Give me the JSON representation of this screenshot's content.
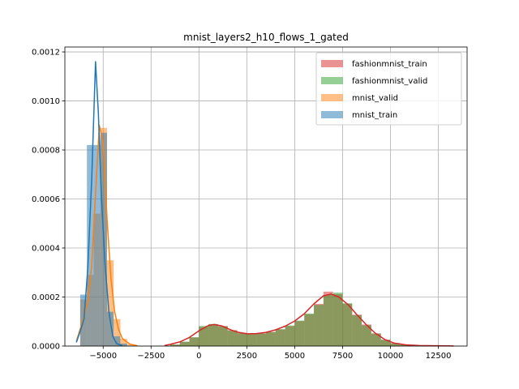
{
  "chart_data": {
    "type": "histogram",
    "title": "mnist_layers2_h10_flows_1_gated",
    "xlabel": "",
    "ylabel": "",
    "xlim": [
      -7000,
      14000
    ],
    "ylim": [
      0,
      0.00122
    ],
    "xticks": [
      -5000,
      -2500,
      0,
      2500,
      5000,
      7500,
      10000,
      12500
    ],
    "xtick_labels": [
      "−5000",
      "−2500",
      "0",
      "2500",
      "5000",
      "7500",
      "10000",
      "12500"
    ],
    "yticks": [
      0,
      0.0002,
      0.0004,
      0.0006,
      0.0008,
      0.001,
      0.0012
    ],
    "ytick_labels": [
      "0.0000",
      "0.0002",
      "0.0004",
      "0.0006",
      "0.0008",
      "0.0010",
      "0.0012"
    ],
    "grid": true,
    "legend_position": "top-right",
    "series": [
      {
        "name": "fashionmnist_train",
        "color": "#d62728",
        "bins": [
          [
            -1500,
            -1000,
            6e-06
          ],
          [
            -1000,
            -500,
            1.7e-05
          ],
          [
            -500,
            0,
            3.5e-05
          ],
          [
            0,
            500,
            7.8e-05
          ],
          [
            500,
            1000,
            8.8e-05
          ],
          [
            1000,
            1500,
            8.2e-05
          ],
          [
            1500,
            2000,
            6.5e-05
          ],
          [
            2000,
            2500,
            5.4e-05
          ],
          [
            2500,
            3000,
            5e-05
          ],
          [
            3000,
            3500,
            5.2e-05
          ],
          [
            3500,
            4000,
            5.8e-05
          ],
          [
            4000,
            4500,
            6.8e-05
          ],
          [
            4500,
            5000,
            8.2e-05
          ],
          [
            5000,
            5500,
            0.000102
          ],
          [
            5500,
            6000,
            0.00013
          ],
          [
            6000,
            6500,
            0.000172
          ],
          [
            6500,
            7000,
            0.000222
          ],
          [
            7000,
            7500,
            0.000212
          ],
          [
            7500,
            8000,
            0.000172
          ],
          [
            8000,
            8500,
            0.000128
          ],
          [
            8500,
            9000,
            8.8e-05
          ],
          [
            9000,
            9500,
            5.2e-05
          ],
          [
            9500,
            10000,
            2.6e-05
          ],
          [
            10000,
            10500,
            1.2e-05
          ],
          [
            10500,
            11000,
            5e-06
          ],
          [
            11000,
            11500,
            2e-06
          ]
        ],
        "kde": [
          [
            -1800,
            2e-06
          ],
          [
            -1500,
            7e-06
          ],
          [
            -1000,
            1.7e-05
          ],
          [
            -500,
            3.5e-05
          ],
          [
            0,
            6.2e-05
          ],
          [
            500,
            8.4e-05
          ],
          [
            800,
            8.8e-05
          ],
          [
            1200,
            8.2e-05
          ],
          [
            1600,
            6.8e-05
          ],
          [
            2000,
            5.7e-05
          ],
          [
            2500,
            5e-05
          ],
          [
            3000,
            5.1e-05
          ],
          [
            3500,
            5.6e-05
          ],
          [
            4000,
            6.6e-05
          ],
          [
            4500,
            8.1e-05
          ],
          [
            5000,
            0.000102
          ],
          [
            5500,
            0.000132
          ],
          [
            6000,
            0.000172
          ],
          [
            6500,
            0.000205
          ],
          [
            6900,
            0.000212
          ],
          [
            7300,
            0.0002
          ],
          [
            7800,
            0.000168
          ],
          [
            8200,
            0.000132
          ],
          [
            8700,
            9e-05
          ],
          [
            9200,
            5.3e-05
          ],
          [
            9700,
            2.7e-05
          ],
          [
            10200,
            1.2e-05
          ],
          [
            10800,
            5e-06
          ],
          [
            11500,
            2e-06
          ],
          [
            13300,
            2e-07
          ]
        ]
      },
      {
        "name": "fashionmnist_valid",
        "color": "#2ca02c",
        "bins": [
          [
            -1500,
            -1000,
            6e-06
          ],
          [
            -1000,
            -500,
            1.8e-05
          ],
          [
            -500,
            0,
            3.6e-05
          ],
          [
            0,
            500,
            8.2e-05
          ],
          [
            500,
            1000,
            9e-05
          ],
          [
            1000,
            1500,
            8e-05
          ],
          [
            1500,
            2000,
            6.3e-05
          ],
          [
            2000,
            2500,
            5.2e-05
          ],
          [
            2500,
            3000,
            4.9e-05
          ],
          [
            3000,
            3500,
            5.1e-05
          ],
          [
            3500,
            4000,
            5.7e-05
          ],
          [
            4000,
            4500,
            6.9e-05
          ],
          [
            4500,
            5000,
            8.4e-05
          ],
          [
            5000,
            5500,
            0.000104
          ],
          [
            5500,
            6000,
            0.000133
          ],
          [
            6000,
            6500,
            0.000168
          ],
          [
            6500,
            7000,
            0.000208
          ],
          [
            7000,
            7500,
            0.000218
          ],
          [
            7500,
            8000,
            0.000175
          ],
          [
            8000,
            8500,
            0.000126
          ],
          [
            8500,
            9000,
            8.5e-05
          ],
          [
            9000,
            9500,
            5e-05
          ],
          [
            9500,
            10000,
            2.5e-05
          ],
          [
            10000,
            10500,
            1.1e-05
          ],
          [
            10500,
            11000,
            5e-06
          ],
          [
            11000,
            11500,
            2e-06
          ]
        ]
      },
      {
        "name": "mnist_valid",
        "color": "#ff7f0e",
        "bins": [
          [
            -6200,
            -5850,
            0.00019
          ],
          [
            -5850,
            -5500,
            0.00029
          ],
          [
            -5500,
            -5150,
            0.00054
          ],
          [
            -5150,
            -4800,
            0.00089
          ],
          [
            -4800,
            -4450,
            0.00035
          ],
          [
            -4450,
            -4100,
            0.00011
          ],
          [
            -4100,
            -3750,
            3e-05
          ],
          [
            -3750,
            -3400,
            8e-06
          ]
        ],
        "kde": [
          [
            -6400,
            2e-05
          ],
          [
            -6200,
            7e-05
          ],
          [
            -6000,
            0.00012
          ],
          [
            -5800,
            0.00018
          ],
          [
            -5600,
            0.00033
          ],
          [
            -5400,
            0.00062
          ],
          [
            -5200,
            0.0009
          ],
          [
            -5000,
            0.00083
          ],
          [
            -4800,
            0.00052
          ],
          [
            -4600,
            0.00028
          ],
          [
            -4400,
            0.00014
          ],
          [
            -4200,
            7e-05
          ],
          [
            -4000,
            3e-05
          ],
          [
            -3600,
            8e-06
          ],
          [
            -3200,
            1e-06
          ]
        ]
      },
      {
        "name": "mnist_train",
        "color": "#1f77b4",
        "bins": [
          [
            -6200,
            -5850,
            0.00021
          ],
          [
            -5850,
            -5500,
            0.00082
          ],
          [
            -5500,
            -5150,
            0.00082
          ],
          [
            -5150,
            -4800,
            0.00087
          ],
          [
            -4800,
            -4450,
            0.00014
          ],
          [
            -4450,
            -4100,
            4e-05
          ],
          [
            -4100,
            -3750,
            1e-05
          ]
        ],
        "kde": [
          [
            -6400,
            1.5e-05
          ],
          [
            -6200,
            6e-05
          ],
          [
            -6000,
            0.00011
          ],
          [
            -5800,
            0.00032
          ],
          [
            -5600,
            0.00068
          ],
          [
            -5400,
            0.00116
          ],
          [
            -5250,
            0.00095
          ],
          [
            -5100,
            0.00062
          ],
          [
            -4900,
            0.00033
          ],
          [
            -4700,
            0.00014
          ],
          [
            -4500,
            4e-05
          ],
          [
            -4300,
            1e-05
          ],
          [
            -4000,
            2e-06
          ]
        ]
      }
    ]
  }
}
